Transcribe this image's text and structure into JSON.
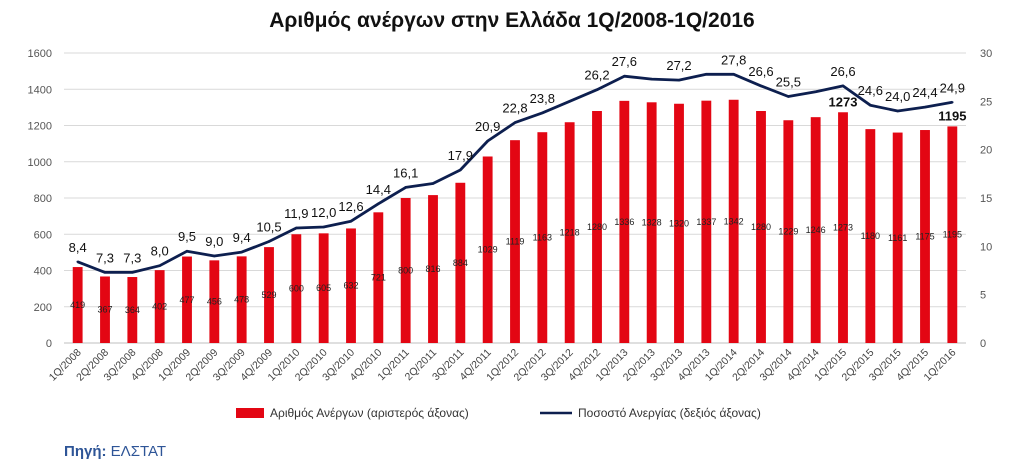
{
  "chart_data": {
    "type": "bar+line",
    "title": "Αριθμός ανέργων στην Ελλάδα 1Q/2008-1Q/2016",
    "categories": [
      "1Q/2008",
      "2Q/2008",
      "3Q/2008",
      "4Q/2008",
      "1Q/2009",
      "2Q/2009",
      "3Q/2009",
      "4Q/2009",
      "1Q/2010",
      "2Q/2010",
      "3Q/2010",
      "4Q/2010",
      "1Q/2011",
      "2Q/2011",
      "3Q/2011",
      "4Q/2011",
      "1Q/2012",
      "2Q/2012",
      "3Q/2012",
      "4Q/2012",
      "1Q/2013",
      "2Q/2013",
      "3Q/2013",
      "4Q/2013",
      "1Q/2014",
      "2Q/2014",
      "3Q/2014",
      "4Q/2014",
      "1Q/2015",
      "2Q/2015",
      "3Q/2015",
      "4Q/2015",
      "1Q/2016"
    ],
    "series": [
      {
        "name": "Αριθμός Ανέργων (αριστερός άξονας)",
        "type": "bar",
        "axis": "left",
        "color": "#e30613",
        "values": [
          419,
          367,
          364,
          402,
          477,
          456,
          478,
          529,
          600,
          605,
          632,
          721,
          800,
          816,
          884,
          1029,
          1119,
          1163,
          1218,
          1280,
          1336,
          1328,
          1320,
          1337,
          1342,
          1280,
          1229,
          1246,
          1273,
          1180,
          1161,
          1175,
          1195
        ],
        "labels": [
          "419",
          "367",
          "364",
          "402",
          "477",
          "456",
          "478",
          "529",
          "600",
          "605",
          "632",
          "721",
          "800",
          "816",
          "884",
          "1029",
          "1119",
          "1163",
          "1218",
          "1280",
          "1336",
          "1328",
          "1320",
          "1337",
          "1342",
          "1280",
          "1229",
          "1246",
          "1273",
          "1180",
          "1161",
          "1175",
          "1195"
        ]
      },
      {
        "name": "Ποσοστό Ανεργίας (δεξιός άξονας)",
        "type": "line",
        "axis": "right",
        "color": "#0d1f4f",
        "values": [
          8.4,
          7.3,
          7.3,
          8.0,
          9.5,
          9.0,
          9.4,
          10.5,
          11.9,
          12.0,
          12.6,
          14.4,
          16.1,
          16.5,
          17.9,
          20.9,
          22.8,
          23.8,
          25.0,
          26.2,
          27.6,
          27.3,
          27.2,
          27.8,
          27.8,
          26.6,
          25.5,
          26.0,
          26.6,
          24.6,
          24.0,
          24.4,
          24.9
        ],
        "labels": [
          "8,4",
          "7,3",
          "7,3",
          "8,0",
          "9,5",
          "9,0",
          "9,4",
          "10,5",
          "11,9",
          "12,0",
          "12,6",
          "14,4",
          "16,1",
          "",
          "17,9",
          "20,9",
          "22,8",
          "23,8",
          "",
          "26,2",
          "27,6",
          "",
          "27,2",
          "",
          "27,8",
          "26,6",
          "25,5",
          "",
          "26,6",
          "24,6",
          "24,0",
          "24,4",
          "24,9"
        ]
      }
    ],
    "y_left": {
      "min": 0,
      "max": 1600,
      "ticks": [
        "0",
        "200",
        "400",
        "600",
        "800",
        "1000",
        "1200",
        "1400",
        "1600"
      ]
    },
    "y_right": {
      "min": 0,
      "max": 30,
      "ticks": [
        "0",
        "5",
        "10",
        "15",
        "20",
        "25",
        "30"
      ]
    },
    "grid": true,
    "legend_position": "bottom",
    "highlighted_bar_labels": {
      "28": "1273",
      "32": "1195"
    }
  },
  "source": {
    "label": "Πηγή:",
    "value": "ΕΛΣΤΑΤ"
  }
}
